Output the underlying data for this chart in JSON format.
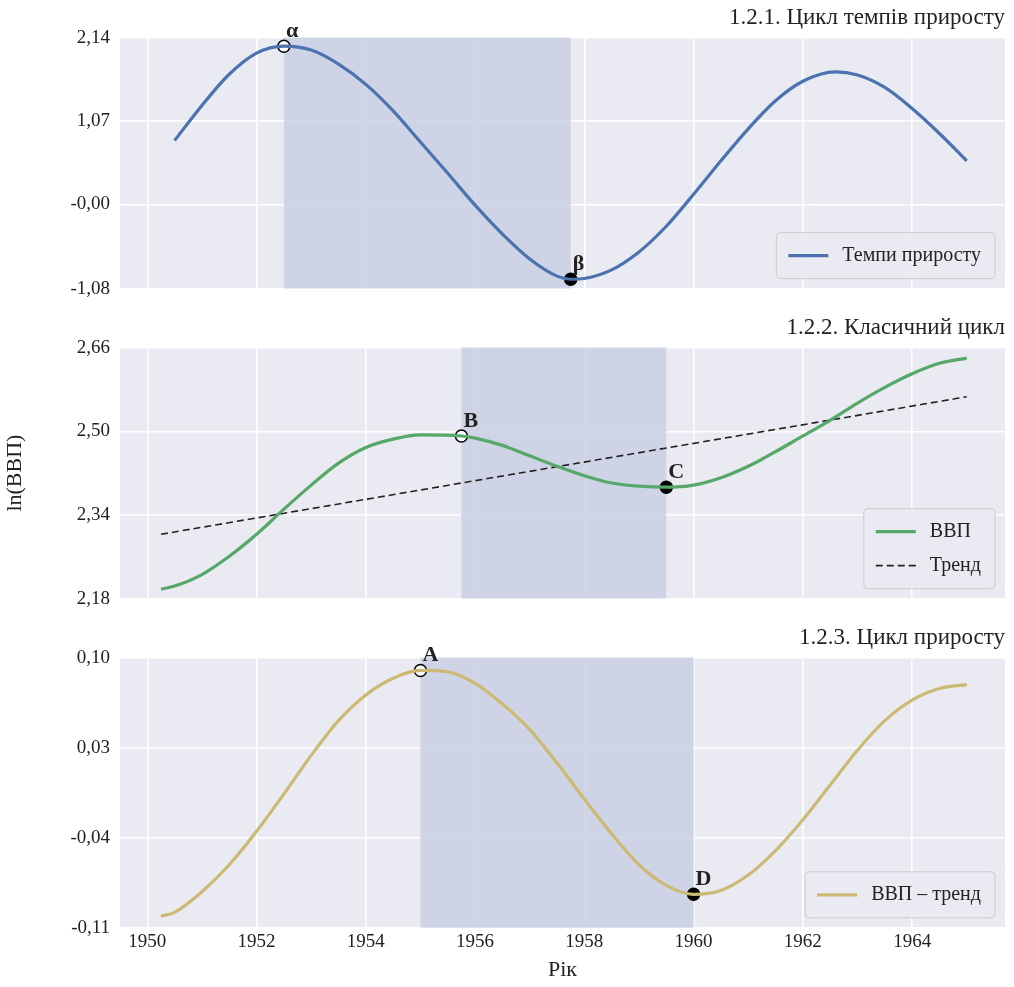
{
  "chart_data": [
    {
      "type": "line",
      "title": "1.2.1. Цикл темпів приросту",
      "x": [
        1950.5,
        1951,
        1951.5,
        1952,
        1952.5,
        1953,
        1953.5,
        1954,
        1954.5,
        1955,
        1955.5,
        1956,
        1956.5,
        1957,
        1957.5,
        1957.75,
        1958,
        1958.5,
        1959,
        1959.5,
        1960,
        1960.5,
        1961,
        1961.5,
        1962,
        1962.6,
        1963,
        1963.5,
        1964,
        1964.5,
        1965
      ],
      "series": [
        {
          "name": "Темпи приросту",
          "color": "#4c72b0",
          "values": [
            0.82,
            1.27,
            1.67,
            1.94,
            2.03,
            1.98,
            1.8,
            1.54,
            1.2,
            0.8,
            0.4,
            -0.01,
            -0.38,
            -0.7,
            -0.92,
            -0.96,
            -0.95,
            -0.84,
            -0.61,
            -0.28,
            0.13,
            0.56,
            0.97,
            1.33,
            1.58,
            1.7,
            1.66,
            1.5,
            1.23,
            0.91,
            0.56
          ]
        },
        {
          "type": "scatter",
          "marker": "circle",
          "color": "#ffffff",
          "x": [
            1952.5
          ],
          "values": [
            2.03
          ]
        },
        {
          "type": "scatter",
          "marker": "circle",
          "color": "#000000",
          "x": [
            1957.75
          ],
          "values": [
            -0.96
          ]
        }
      ],
      "bands": [
        {
          "axis": "x",
          "from": 1952.5,
          "to": 1957.75,
          "color": "#c9d0e3"
        }
      ],
      "annotations": [
        {
          "text": "α",
          "x": 1952.5,
          "y": 2.03
        },
        {
          "text": "β",
          "x": 1957.75,
          "y": -0.96
        }
      ],
      "xlim": [
        1949.5,
        1965.7
      ],
      "xticks": [
        1950,
        1952,
        1954,
        1956,
        1958,
        1960,
        1962,
        1964
      ],
      "ylim": [
        -1.08,
        2.14
      ],
      "yticks": [
        {
          "value": -1.08,
          "label": "-1,08"
        },
        {
          "value": -0.0,
          "label": "-0,00"
        },
        {
          "value": 1.067,
          "label": "1,07"
        },
        {
          "value": 2.14,
          "label": "2,14"
        }
      ],
      "tick_labels": "y",
      "grid": true,
      "legend": "bottom right"
    },
    {
      "type": "line",
      "title": "1.2.2. Класичний цикл",
      "ylabel": "ln(ВВП)",
      "x": [
        1950.25,
        1950.5,
        1951,
        1951.5,
        1952,
        1952.5,
        1953,
        1953.5,
        1954,
        1954.5,
        1955,
        1955.75,
        1956,
        1956.5,
        1957,
        1957.5,
        1958,
        1958.5,
        1959,
        1959.5,
        1960,
        1960.5,
        1961,
        1961.5,
        1962,
        1962.5,
        1963,
        1963.5,
        1964,
        1964.5,
        1965
      ],
      "series": [
        {
          "name": "ВВП",
          "color": "#55a868",
          "values": [
            2.198,
            2.204,
            2.226,
            2.261,
            2.303,
            2.351,
            2.397,
            2.439,
            2.469,
            2.485,
            2.493,
            2.491,
            2.487,
            2.473,
            2.453,
            2.433,
            2.415,
            2.401,
            2.395,
            2.393,
            2.397,
            2.411,
            2.433,
            2.461,
            2.491,
            2.521,
            2.554,
            2.584,
            2.61,
            2.63,
            2.64
          ]
        },
        {
          "name": "Тренд",
          "color": "#222222",
          "line_style": "dashed",
          "x": [
            1950.25,
            1965
          ],
          "values": [
            2.303,
            2.566
          ]
        },
        {
          "type": "scatter",
          "marker": "circle",
          "color": "#ffffff",
          "x": [
            1955.75
          ],
          "values": [
            2.491
          ]
        },
        {
          "type": "scatter",
          "marker": "circle",
          "color": "#000000",
          "x": [
            1959.5
          ],
          "values": [
            2.393
          ]
        }
      ],
      "bands": [
        {
          "axis": "x",
          "from": 1955.75,
          "to": 1959.5,
          "color": "#c9d0e3"
        }
      ],
      "annotations": [
        {
          "text": "B",
          "x": 1955.75,
          "y": 2.491
        },
        {
          "text": "C",
          "x": 1959.5,
          "y": 2.393
        }
      ],
      "xlim": [
        1949.5,
        1965.7
      ],
      "xticks": [
        1950,
        1952,
        1954,
        1956,
        1958,
        1960,
        1962,
        1964
      ],
      "ylim": [
        2.18,
        2.66
      ],
      "yticks": [
        {
          "value": 2.18,
          "label": "2,18"
        },
        {
          "value": 2.34,
          "label": "2,34"
        },
        {
          "value": 2.5,
          "label": "2,50"
        },
        {
          "value": 2.66,
          "label": "2,66"
        }
      ],
      "tick_labels": "y",
      "grid": true,
      "legend": "bottom right"
    },
    {
      "type": "line",
      "title": "1.2.3. Цикл приросту",
      "xlabel": "Рік",
      "x": [
        1950.25,
        1950.5,
        1951,
        1951.5,
        1952,
        1952.5,
        1953,
        1953.5,
        1954,
        1954.5,
        1955,
        1955.5,
        1956,
        1956.5,
        1957,
        1957.5,
        1958,
        1958.5,
        1959,
        1959.5,
        1960,
        1960.5,
        1961,
        1961.5,
        1962,
        1962.5,
        1963,
        1963.5,
        1964,
        1964.5,
        1965
      ],
      "series": [
        {
          "name": "ВВП – тренд",
          "color": "#ccb974",
          "values": [
            -0.101,
            -0.098,
            -0.082,
            -0.061,
            -0.035,
            -0.006,
            0.024,
            0.051,
            0.071,
            0.084,
            0.09,
            0.089,
            0.08,
            0.064,
            0.044,
            0.018,
            -0.01,
            -0.037,
            -0.061,
            -0.077,
            -0.084,
            -0.081,
            -0.069,
            -0.05,
            -0.026,
            0.001,
            0.028,
            0.051,
            0.067,
            0.076,
            0.079
          ]
        },
        {
          "type": "scatter",
          "marker": "circle",
          "color": "#ffffff",
          "x": [
            1955
          ],
          "values": [
            0.09
          ]
        },
        {
          "type": "scatter",
          "marker": "circle",
          "color": "#000000",
          "x": [
            1960
          ],
          "values": [
            -0.084
          ]
        }
      ],
      "bands": [
        {
          "axis": "x",
          "from": 1955,
          "to": 1960,
          "color": "#c9d0e3"
        }
      ],
      "annotations": [
        {
          "text": "A",
          "x": 1955,
          "y": 0.09
        },
        {
          "text": "D",
          "x": 1960,
          "y": -0.084
        }
      ],
      "xlim": [
        1949.5,
        1965.7
      ],
      "xticks": [
        1950,
        1952,
        1954,
        1956,
        1958,
        1960,
        1962,
        1964
      ],
      "ylim": [
        -0.11,
        0.1
      ],
      "yticks": [
        {
          "value": -0.11,
          "label": "-0,11"
        },
        {
          "value": -0.04,
          "label": "-0,04"
        },
        {
          "value": 0.03,
          "label": "0,03"
        },
        {
          "value": 0.1,
          "label": "0,10"
        }
      ],
      "grid": true,
      "legend": "bottom right"
    }
  ]
}
